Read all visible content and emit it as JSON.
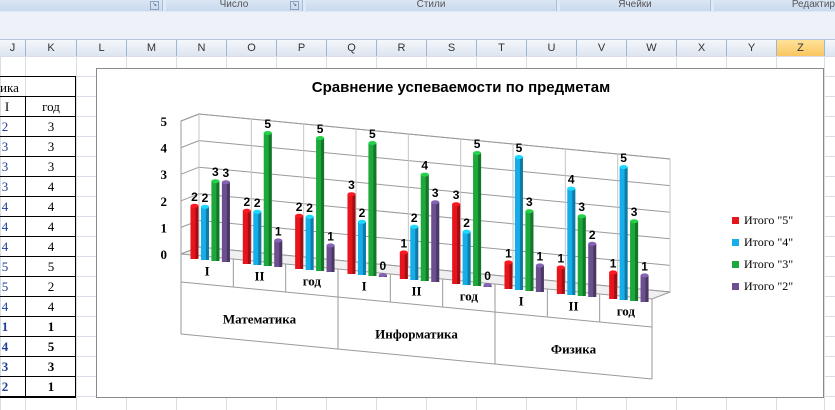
{
  "ribbon": {
    "groups": [
      {
        "label": ""
      },
      {
        "label": "Число"
      },
      {
        "label": "Стили"
      },
      {
        "label": "Ячейки"
      },
      {
        "label": "Редактир"
      }
    ]
  },
  "columns": [
    "J",
    "K",
    "L",
    "M",
    "N",
    "O",
    "P",
    "Q",
    "R",
    "S",
    "T",
    "U",
    "V",
    "W",
    "X",
    "Y",
    "Z"
  ],
  "selected_column": "Z",
  "table": {
    "header_partial": "ика",
    "col_j_header": "I",
    "col_k_header": "год",
    "rows": [
      {
        "j": "2",
        "k": "3",
        "bold": false
      },
      {
        "j": "3",
        "k": "3",
        "bold": false
      },
      {
        "j": "3",
        "k": "3",
        "bold": false
      },
      {
        "j": "3",
        "k": "4",
        "bold": false
      },
      {
        "j": "4",
        "k": "4",
        "bold": false
      },
      {
        "j": "4",
        "k": "4",
        "bold": false
      },
      {
        "j": "4",
        "k": "4",
        "bold": false
      },
      {
        "j": "5",
        "k": "5",
        "bold": false
      },
      {
        "j": "5",
        "k": "2",
        "bold": false
      },
      {
        "j": "4",
        "k": "4",
        "bold": false
      },
      {
        "j": "1",
        "k": "1",
        "bold": true
      },
      {
        "j": "4",
        "k": "5",
        "bold": true
      },
      {
        "j": "3",
        "k": "3",
        "bold": true
      },
      {
        "j": "2",
        "k": "1",
        "bold": true
      }
    ]
  },
  "chart_data": {
    "type": "bar",
    "title": "Сравнение успеваемости по предметам",
    "categories": [
      "I",
      "II",
      "год",
      "I",
      "II",
      "год",
      "I",
      "II",
      "год"
    ],
    "groups": [
      {
        "label": "Математика",
        "span": 3
      },
      {
        "label": "Информатика",
        "span": 3
      },
      {
        "label": "Физика",
        "span": 3
      }
    ],
    "series": [
      {
        "name": "Итого \"5\"",
        "color": "#e8141b",
        "values": [
          2,
          2,
          2,
          3,
          1,
          3,
          1,
          1,
          1
        ]
      },
      {
        "name": "Итого \"4\"",
        "color": "#16aeea",
        "values": [
          2,
          2,
          2,
          2,
          2,
          2,
          5,
          4,
          5
        ]
      },
      {
        "name": "Итого \"3\"",
        "color": "#1ca83a",
        "values": [
          3,
          5,
          5,
          5,
          4,
          5,
          3,
          3,
          3
        ]
      },
      {
        "name": "Итого \"2\"",
        "color": "#6b4f8f",
        "values": [
          3,
          1,
          1,
          0,
          3,
          0,
          1,
          2,
          1
        ]
      }
    ],
    "yticks": [
      "0",
      "1",
      "2",
      "3",
      "4",
      "5"
    ],
    "ylim": [
      0,
      5
    ],
    "grid": true,
    "legend": "right"
  }
}
